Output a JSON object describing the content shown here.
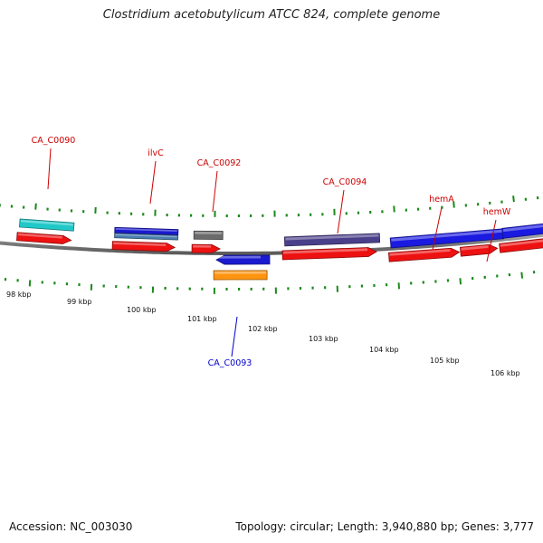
{
  "title": "Clostridium acetobutylicum ATCC 824, complete genome",
  "footer": {
    "accession": "Accession: NC_003030",
    "summary": "Topology: circular; Length: 3,940,880 bp; Genes: 3,777"
  },
  "colors": {
    "backbone": "#808080",
    "tick": "#1a8a1a",
    "label_forward": "#cc0000",
    "label_reverse": "#0000cc"
  },
  "ticks": [
    {
      "label": "98 kbp"
    },
    {
      "label": "99 kbp"
    },
    {
      "label": "100 kbp"
    },
    {
      "label": "101 kbp"
    },
    {
      "label": "102 kbp"
    },
    {
      "label": "103 kbp"
    },
    {
      "label": "104 kbp"
    },
    {
      "label": "105 kbp"
    },
    {
      "label": "106 kbp"
    }
  ],
  "genes": [
    {
      "name": "CA_C0090",
      "strand": "forward",
      "color": "#20c8c8"
    },
    {
      "name": "ilvC",
      "strand": "forward",
      "color": "#1a1ad0"
    },
    {
      "name": "CA_C0092",
      "strand": "forward",
      "color": "#6b6b6b"
    },
    {
      "name": "CA_C0093",
      "strand": "reverse",
      "color": "#1a1ad0"
    },
    {
      "name": "CA_C0094",
      "strand": "forward",
      "color": "#4a3f8a"
    },
    {
      "name": "hemA",
      "strand": "forward",
      "color": "#1a1ae0"
    },
    {
      "name": "hemW",
      "strand": "forward",
      "color": "#1a1ae0"
    }
  ]
}
